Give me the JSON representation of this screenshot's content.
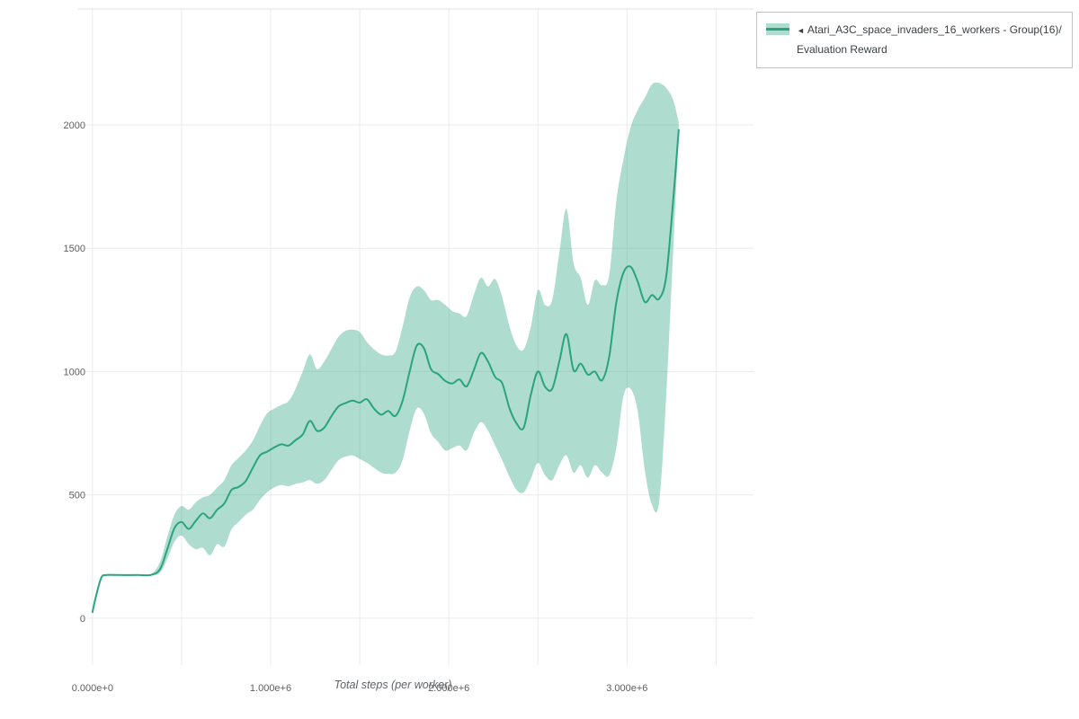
{
  "legend": {
    "collapse_icon": "◄",
    "entry_line1": "Atari_A3C_space_invaders_16_workers - Group(16)/",
    "entry_line2": "Evaluation Reward"
  },
  "chart_data": {
    "type": "line",
    "title": "",
    "xlabel": "Total steps (per worker)",
    "ylabel": "",
    "grid": true,
    "legend_position": "top-right",
    "xlim": [
      -80000,
      3710000
    ],
    "ylim": [
      -190,
      2470
    ],
    "x_grid_values": [
      0,
      500000,
      1000000,
      1500000,
      2000000,
      2500000,
      3000000,
      3500000
    ],
    "x_tick_values": [
      0,
      1000000,
      2000000,
      3000000
    ],
    "x_tick_labels": [
      "0.000e+0",
      "1.000e+6",
      "2.000e+6",
      "3.000e+6"
    ],
    "y_ticks": [
      0,
      500,
      1000,
      1500,
      2000
    ],
    "colors": {
      "grid": "#ebebeb",
      "axis_text": "#606060",
      "plot_border": "#e0e0e0"
    },
    "series": [
      {
        "name": "Atari_A3C_space_invaders_16_workers - Group(16)/Evaluation Reward",
        "color": "#2aa37e",
        "band_color": "rgba(42,163,126,0.38)",
        "x": [
          0,
          20000,
          50000,
          80000,
          150000,
          250000,
          330000,
          380000,
          420000,
          460000,
          500000,
          540000,
          580000,
          620000,
          660000,
          700000,
          740000,
          780000,
          820000,
          860000,
          900000,
          940000,
          980000,
          1020000,
          1060000,
          1100000,
          1140000,
          1180000,
          1220000,
          1260000,
          1300000,
          1340000,
          1380000,
          1420000,
          1460000,
          1500000,
          1540000,
          1580000,
          1620000,
          1660000,
          1700000,
          1740000,
          1780000,
          1820000,
          1860000,
          1900000,
          1940000,
          1980000,
          2020000,
          2060000,
          2100000,
          2140000,
          2180000,
          2220000,
          2260000,
          2300000,
          2340000,
          2380000,
          2420000,
          2460000,
          2500000,
          2540000,
          2580000,
          2620000,
          2660000,
          2700000,
          2740000,
          2780000,
          2820000,
          2860000,
          2900000,
          2940000,
          2980000,
          3020000,
          3060000,
          3100000,
          3140000,
          3180000,
          3220000,
          3260000,
          3290000
        ],
        "mean": [
          25,
          90,
          165,
          175,
          175,
          175,
          176,
          200,
          280,
          365,
          390,
          362,
          395,
          425,
          405,
          440,
          465,
          520,
          532,
          556,
          610,
          660,
          675,
          692,
          705,
          700,
          722,
          745,
          800,
          760,
          772,
          818,
          858,
          872,
          882,
          874,
          888,
          850,
          825,
          840,
          820,
          880,
          1000,
          1105,
          1095,
          1010,
          990,
          962,
          952,
          968,
          940,
          1005,
          1075,
          1040,
          978,
          952,
          852,
          790,
          772,
          905,
          1000,
          938,
          930,
          1040,
          1152,
          1005,
          1032,
          988,
          1000,
          965,
          1060,
          1280,
          1400,
          1425,
          1365,
          1282,
          1310,
          1295,
          1385,
          1700,
          1980
        ],
        "lower": [
          25,
          85,
          160,
          173,
          173,
          173,
          174,
          185,
          240,
          310,
          335,
          300,
          280,
          285,
          255,
          300,
          290,
          360,
          390,
          420,
          440,
          480,
          510,
          530,
          540,
          535,
          545,
          550,
          560,
          545,
          560,
          600,
          640,
          655,
          660,
          645,
          630,
          610,
          590,
          585,
          590,
          640,
          760,
          850,
          830,
          750,
          715,
          680,
          690,
          700,
          680,
          750,
          795,
          760,
          700,
          640,
          575,
          520,
          510,
          565,
          630,
          580,
          560,
          620,
          660,
          590,
          620,
          570,
          620,
          590,
          580,
          690,
          900,
          930,
          840,
          600,
          460,
          470,
          900,
          1500,
          1950
        ],
        "upper": [
          25,
          95,
          170,
          177,
          177,
          177,
          180,
          230,
          330,
          420,
          455,
          440,
          470,
          490,
          500,
          530,
          560,
          620,
          650,
          680,
          720,
          780,
          830,
          850,
          865,
          880,
          930,
          1000,
          1070,
          1010,
          1040,
          1090,
          1140,
          1165,
          1170,
          1160,
          1120,
          1090,
          1070,
          1065,
          1080,
          1180,
          1300,
          1345,
          1330,
          1290,
          1290,
          1270,
          1245,
          1235,
          1225,
          1310,
          1380,
          1345,
          1375,
          1300,
          1185,
          1105,
          1090,
          1180,
          1330,
          1270,
          1290,
          1480,
          1660,
          1440,
          1380,
          1270,
          1370,
          1350,
          1390,
          1690,
          1860,
          1990,
          2060,
          2110,
          2165,
          2170,
          2150,
          2100,
          2010
        ]
      }
    ]
  }
}
